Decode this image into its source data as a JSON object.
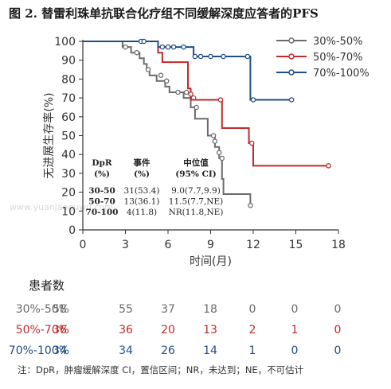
{
  "title": "图 2. 替雷利珠单抗联合化疗组不同缓解深度应答者的PFS",
  "watermark": "www.yuanjaoguwu.com",
  "chart_data": {
    "type": "line",
    "step": true,
    "xlabel": "时间(月)",
    "ylabel": "无进展生存率(%)",
    "xlim": [
      0,
      18
    ],
    "ylim": [
      0,
      100
    ],
    "xticks": [
      0,
      3,
      6,
      9,
      12,
      15,
      18
    ],
    "yticks": [
      0,
      10,
      20,
      30,
      40,
      50,
      60,
      70,
      80,
      90,
      100
    ],
    "grid": false,
    "legend_position": "top-right",
    "series": [
      {
        "name": "30%-50%",
        "color": "#6b6b6b",
        "points": [
          [
            0,
            100
          ],
          [
            2.8,
            100
          ],
          [
            2.8,
            97
          ],
          [
            3.4,
            97
          ],
          [
            3.4,
            94
          ],
          [
            4.0,
            94
          ],
          [
            4.0,
            91
          ],
          [
            4.3,
            91
          ],
          [
            4.3,
            88
          ],
          [
            4.5,
            88
          ],
          [
            4.5,
            85
          ],
          [
            4.7,
            85
          ],
          [
            4.7,
            82
          ],
          [
            5.2,
            82
          ],
          [
            5.2,
            79
          ],
          [
            5.8,
            79
          ],
          [
            5.8,
            76
          ],
          [
            6.1,
            76
          ],
          [
            6.1,
            73
          ],
          [
            7.1,
            73
          ],
          [
            7.1,
            70
          ],
          [
            7.6,
            70
          ],
          [
            7.6,
            65
          ],
          [
            7.9,
            65
          ],
          [
            7.9,
            59
          ],
          [
            8.8,
            59
          ],
          [
            8.8,
            50
          ],
          [
            9.3,
            50
          ],
          [
            9.3,
            44
          ],
          [
            9.6,
            44
          ],
          [
            9.6,
            38
          ],
          [
            9.8,
            38
          ],
          [
            9.8,
            27
          ],
          [
            9.9,
            27
          ],
          [
            9.9,
            19
          ],
          [
            11.8,
            19
          ],
          [
            11.8,
            13
          ]
        ],
        "censored": [
          [
            3.0,
            97
          ],
          [
            3.8,
            94
          ],
          [
            4.6,
            85
          ],
          [
            5.5,
            82
          ],
          [
            5.9,
            79
          ],
          [
            6.7,
            73
          ],
          [
            7.3,
            73
          ],
          [
            7.8,
            70
          ],
          [
            8.0,
            65
          ],
          [
            9.2,
            50
          ],
          [
            9.3,
            47
          ],
          [
            9.6,
            41
          ],
          [
            9.8,
            38
          ],
          [
            11.8,
            13
          ]
        ]
      },
      {
        "name": "50%-70%",
        "color": "#c02a2a",
        "points": [
          [
            0,
            100
          ],
          [
            5.3,
            100
          ],
          [
            5.3,
            94
          ],
          [
            5.6,
            94
          ],
          [
            5.6,
            89
          ],
          [
            7.4,
            89
          ],
          [
            7.4,
            75
          ],
          [
            7.6,
            75
          ],
          [
            7.6,
            69
          ],
          [
            9.8,
            69
          ],
          [
            9.8,
            54
          ],
          [
            11.7,
            54
          ],
          [
            11.7,
            46
          ],
          [
            12.0,
            46
          ],
          [
            12.0,
            34
          ],
          [
            17.3,
            34
          ]
        ],
        "censored": [
          [
            7.6,
            72
          ],
          [
            9.7,
            69
          ],
          [
            11.9,
            46
          ],
          [
            17.3,
            34
          ]
        ]
      },
      {
        "name": "70%-100%",
        "color": "#1f4e87",
        "points": [
          [
            0,
            100
          ],
          [
            5.3,
            100
          ],
          [
            5.3,
            97
          ],
          [
            7.8,
            97
          ],
          [
            7.8,
            92
          ],
          [
            11.8,
            92
          ],
          [
            11.8,
            69
          ],
          [
            14.7,
            69
          ]
        ],
        "censored": [
          [
            4.1,
            100
          ],
          [
            4.3,
            100
          ],
          [
            5.6,
            97
          ],
          [
            6.0,
            97
          ],
          [
            6.4,
            97
          ],
          [
            7.1,
            97
          ],
          [
            7.9,
            92
          ],
          [
            8.3,
            92
          ],
          [
            9.0,
            92
          ],
          [
            9.9,
            92
          ],
          [
            11.6,
            92
          ],
          [
            12.0,
            69
          ],
          [
            14.7,
            69
          ]
        ]
      }
    ],
    "inset_table": {
      "headers": [
        [
          "DpR",
          "(%)"
        ],
        [
          "事件",
          "(%)"
        ],
        [
          "中位值",
          "(95% CI)"
        ]
      ],
      "rows": [
        [
          "30-50",
          "31(53.4)",
          "9.0(7.7,9.9)"
        ],
        [
          "50-70",
          "13(36.1)",
          "11.5(7.7,NE)"
        ],
        [
          "70-100",
          "4(11.8)",
          "NR(11.8,NE)"
        ]
      ]
    }
  },
  "risk_table": {
    "title": "患者数",
    "rows": [
      {
        "label": "30%-50%",
        "color": "#6b6b6b",
        "values": [
          "58",
          "55",
          "37",
          "18",
          "0",
          "0",
          "0"
        ]
      },
      {
        "label": "50%-70%",
        "color": "#c02a2a",
        "values": [
          "36",
          "36",
          "20",
          "13",
          "2",
          "1",
          "0"
        ]
      },
      {
        "label": "70%-100%",
        "color": "#1f4e87",
        "values": [
          "34",
          "34",
          "26",
          "14",
          "1",
          "0",
          "0"
        ]
      }
    ]
  },
  "footnote": "注：DpR，肿瘤缓解深度 CI，置信区间；NR，未达到；NE，不可估计"
}
